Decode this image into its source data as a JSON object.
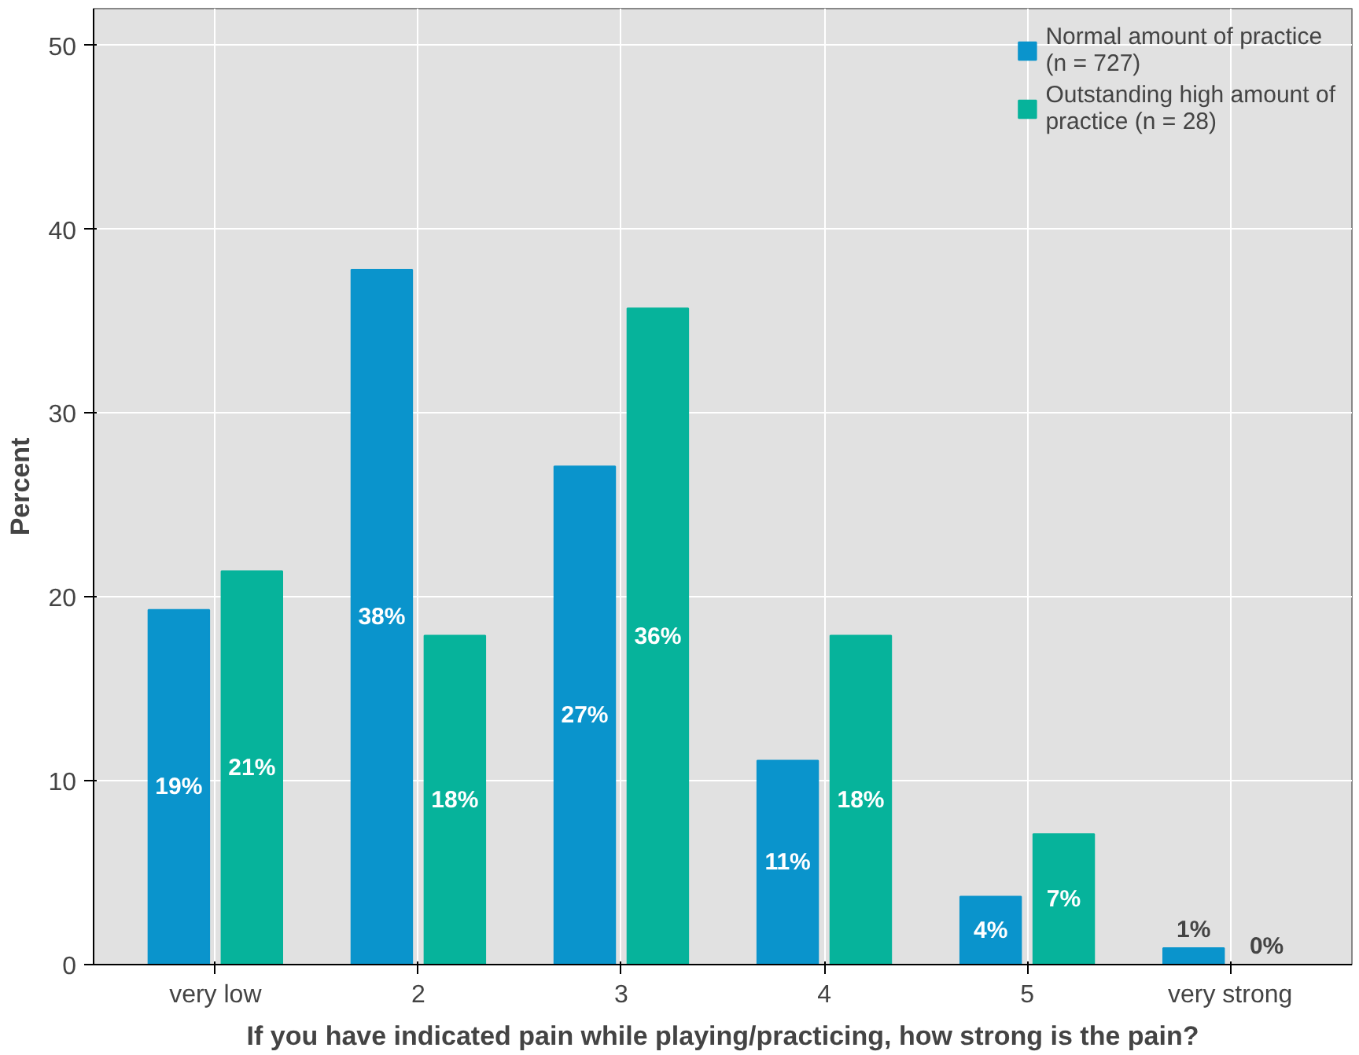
{
  "chart_data": {
    "type": "bar",
    "xlabel": "If you have indicated pain while playing/practicing, how strong is the pain?",
    "ylabel": "Percent",
    "categories": [
      "very low",
      "2",
      "3",
      "4",
      "5",
      "very strong"
    ],
    "series": [
      {
        "name": "Normal amount of practice (n = 727)",
        "color": "#0a94cc",
        "values": [
          19.3,
          37.8,
          27.1,
          11.1,
          3.7,
          0.9
        ],
        "value_labels": [
          "19%",
          "38%",
          "27%",
          "11%",
          "4%",
          "1%"
        ]
      },
      {
        "name": "Outstanding high amount of practice (n = 28)",
        "color": "#06b39b",
        "values": [
          21.4,
          17.9,
          35.7,
          17.9,
          7.1,
          0
        ],
        "value_labels": [
          "21%",
          "18%",
          "36%",
          "18%",
          "7%",
          "0%"
        ]
      }
    ],
    "ylim": [
      0,
      52
    ],
    "yticks": [
      0,
      10,
      20,
      30,
      40,
      50
    ],
    "grid": true,
    "legend": "top right"
  }
}
